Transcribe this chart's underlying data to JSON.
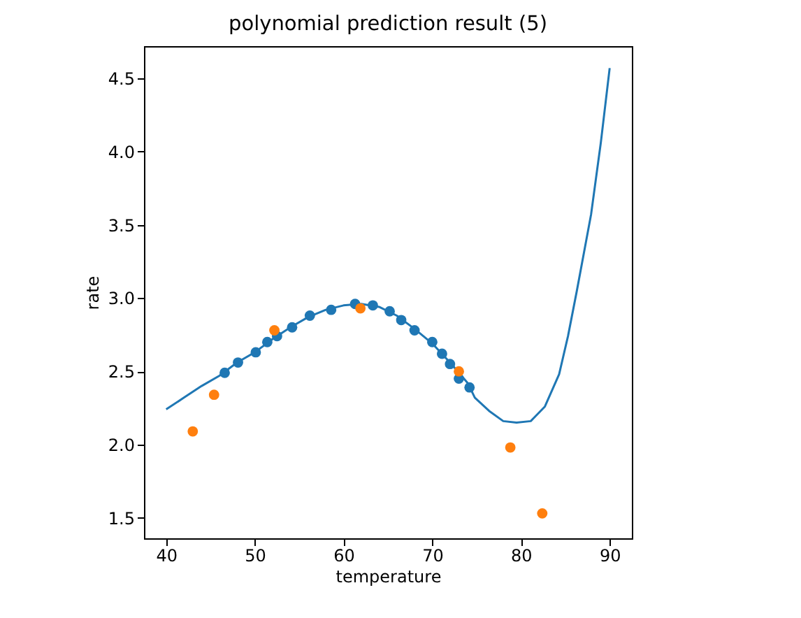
{
  "chart_data": {
    "type": "scatter",
    "title": "polynomial prediction result (5)",
    "xlabel": "temperature",
    "ylabel": "rate",
    "xlim": [
      37.5,
      92.5
    ],
    "ylim": [
      1.36,
      4.72
    ],
    "xticks": [
      40,
      50,
      60,
      70,
      80,
      90
    ],
    "yticks": [
      1.5,
      {
        "value": 2,
        "label": "2.0"
      },
      2.5,
      {
        "value": 3,
        "label": "3.0"
      },
      3.5,
      {
        "value": 4,
        "label": "4.0"
      },
      4.5
    ],
    "grid": false,
    "series": [
      {
        "type": "line",
        "color": "#1f77b4",
        "x": [
          40,
          42,
          44,
          46,
          48,
          50,
          52,
          54,
          56,
          58,
          60,
          62,
          64,
          66,
          68,
          70,
          72,
          74,
          74.8,
          76.4,
          78,
          79.5,
          81.1,
          82.7,
          84.3,
          85.3,
          86.3,
          87.9,
          89,
          90
        ],
        "values": [
          2.24,
          2.32,
          2.4,
          2.47,
          2.56,
          2.63,
          2.72,
          2.8,
          2.87,
          2.92,
          2.95,
          2.96,
          2.94,
          2.88,
          2.79,
          2.69,
          2.56,
          2.42,
          2.32,
          2.23,
          2.16,
          2.15,
          2.16,
          2.26,
          2.48,
          2.74,
          3.05,
          3.57,
          4.06,
          4.57
        ]
      },
      {
        "marker": "circle",
        "color": "#1f77b4",
        "x": [
          46.6,
          48.1,
          50.1,
          51.4,
          52.5,
          54.2,
          56.2,
          58.6,
          61.3,
          63.3,
          65.2,
          66.5,
          68,
          70,
          71.1,
          72,
          73,
          74.2
        ],
        "values": [
          2.49,
          2.56,
          2.63,
          2.7,
          2.74,
          2.8,
          2.88,
          2.92,
          2.96,
          2.95,
          2.91,
          2.85,
          2.78,
          2.7,
          2.62,
          2.55,
          2.45,
          2.39
        ]
      },
      {
        "marker": "circle",
        "color": "#ff7f0e",
        "x": [
          43,
          45.4,
          52.2,
          61.9,
          73,
          78.8,
          82.4
        ],
        "values": [
          2.09,
          2.34,
          2.78,
          2.93,
          2.5,
          1.98,
          1.53
        ]
      }
    ]
  }
}
